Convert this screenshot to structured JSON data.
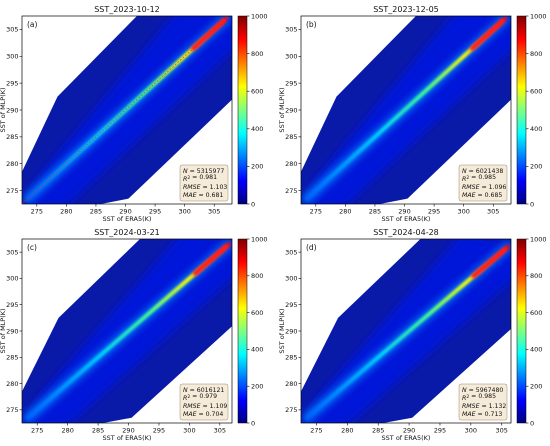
{
  "colors": {
    "background": "#00007f",
    "identity_line": "#ff2020",
    "stats_box_fill": "#f5ebd8",
    "stats_box_stroke": "#9a8a6a",
    "colormap": [
      "#00007f",
      "#0000ff",
      "#007fff",
      "#00ffff",
      "#7fff7f",
      "#ffff00",
      "#ff7f00",
      "#ff0000",
      "#7f0000"
    ]
  },
  "chart_data": [
    {
      "type": "heatmap",
      "panel_label": "(a)",
      "title": "SST_2023-10-12",
      "xlabel": "SST of ERA5(K)",
      "ylabel": "SST of MLP(K)",
      "xlim": [
        272.5,
        308
      ],
      "ylim": [
        272.5,
        307.5
      ],
      "x_ticks": [
        275,
        280,
        285,
        290,
        295,
        300,
        305
      ],
      "y_ticks": [
        275,
        280,
        285,
        290,
        295,
        300,
        305
      ],
      "density_range": [
        0,
        1000
      ],
      "colorbar_ticks": [
        0,
        200,
        400,
        600,
        800,
        1000
      ],
      "identity_line": true,
      "stats": [
        {
          "label": "N",
          "value": "5315977",
          "italic": true,
          "super": false
        },
        {
          "label": "R",
          "value": "0.981",
          "italic": true,
          "super": true
        },
        {
          "label": "RMSE",
          "value": "1.103",
          "italic": true,
          "super": false
        },
        {
          "label": "MAE",
          "value": "0.681",
          "italic": true,
          "super": false
        }
      ]
    },
    {
      "type": "heatmap",
      "panel_label": "(b)",
      "title": "SST_2023-12-05",
      "xlabel": "SST of ERA5(K)",
      "ylabel": "SST of MLP(K)",
      "xlim": [
        272.5,
        308
      ],
      "ylim": [
        272.5,
        307.5
      ],
      "x_ticks": [
        275,
        280,
        285,
        290,
        295,
        300,
        305
      ],
      "y_ticks": [
        275,
        280,
        285,
        290,
        295,
        300,
        305
      ],
      "density_range": [
        0,
        1000
      ],
      "colorbar_ticks": [
        0,
        200,
        400,
        600,
        800,
        1000
      ],
      "identity_line": false,
      "stats": [
        {
          "label": "N",
          "value": "6021438",
          "italic": true,
          "super": false
        },
        {
          "label": "R",
          "value": "0.985",
          "italic": true,
          "super": true
        },
        {
          "label": "RMSE",
          "value": "1.096",
          "italic": true,
          "super": false
        },
        {
          "label": "MAE",
          "value": "0.685",
          "italic": true,
          "super": false
        }
      ]
    },
    {
      "type": "heatmap",
      "panel_label": "(c)",
      "title": "SST_2024-03-21",
      "xlabel": "SST of ERA5(K)",
      "ylabel": "SST of MLP(K)",
      "xlim": [
        272.5,
        307
      ],
      "ylim": [
        272.5,
        307.5
      ],
      "x_ticks": [
        275,
        280,
        285,
        290,
        295,
        300,
        305
      ],
      "y_ticks": [
        275,
        280,
        285,
        290,
        295,
        300,
        305
      ],
      "density_range": [
        0,
        1000
      ],
      "colorbar_ticks": [
        0,
        200,
        400,
        600,
        800,
        1000
      ],
      "identity_line": false,
      "stats": [
        {
          "label": "N",
          "value": "6016121",
          "italic": true,
          "super": false
        },
        {
          "label": "R",
          "value": "0.979",
          "italic": true,
          "super": true
        },
        {
          "label": "RMSE",
          "value": "1.109",
          "italic": true,
          "super": false
        },
        {
          "label": "MAE",
          "value": "0.704",
          "italic": true,
          "super": false
        }
      ]
    },
    {
      "type": "heatmap",
      "panel_label": "(d)",
      "title": "SST_2024-04-28",
      "xlabel": "SST of ERA5(K)",
      "ylabel": "SST of MLP(K)",
      "xlim": [
        272.5,
        306.5
      ],
      "ylim": [
        272.5,
        307.5
      ],
      "x_ticks": [
        275,
        280,
        285,
        290,
        295,
        300,
        305
      ],
      "y_ticks": [
        275,
        280,
        285,
        290,
        295,
        300,
        305
      ],
      "density_range": [
        0,
        1000
      ],
      "colorbar_ticks": [
        0,
        200,
        400,
        600,
        800,
        1000
      ],
      "identity_line": false,
      "stats": [
        {
          "label": "N",
          "value": "5967480",
          "italic": true,
          "super": false
        },
        {
          "label": "R",
          "value": "0.985",
          "italic": true,
          "super": true
        },
        {
          "label": "RMSE",
          "value": "1.132",
          "italic": true,
          "super": false
        },
        {
          "label": "MAE",
          "value": "0.713",
          "italic": true,
          "super": false
        }
      ]
    }
  ]
}
